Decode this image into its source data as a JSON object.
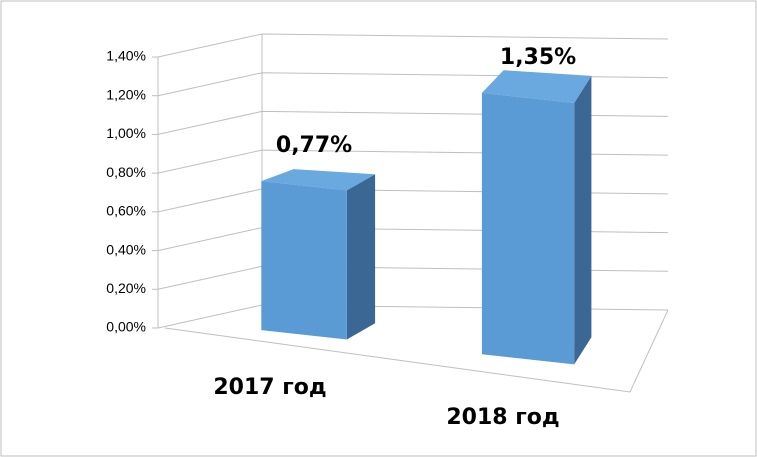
{
  "chart_data": {
    "type": "bar3d",
    "categories": [
      "2017 год",
      "2018 год"
    ],
    "values": [
      0.77,
      1.35
    ],
    "value_labels": [
      "0,77%",
      "1,35%"
    ],
    "color": "#5b9bd5",
    "ylim": [
      0,
      1.4
    ],
    "yticks": [
      {
        "value": 0,
        "label": "0,00%"
      },
      {
        "value": 0.2,
        "label": "0,20%"
      },
      {
        "value": 0.4,
        "label": "0,40%"
      },
      {
        "value": 0.6,
        "label": "0,60%"
      },
      {
        "value": 0.8,
        "label": "0,80%"
      },
      {
        "value": 1.0,
        "label": "1,00%"
      },
      {
        "value": 1.2,
        "label": "1,20%"
      },
      {
        "value": 1.4,
        "label": "1,40%"
      }
    ],
    "grid": true
  }
}
